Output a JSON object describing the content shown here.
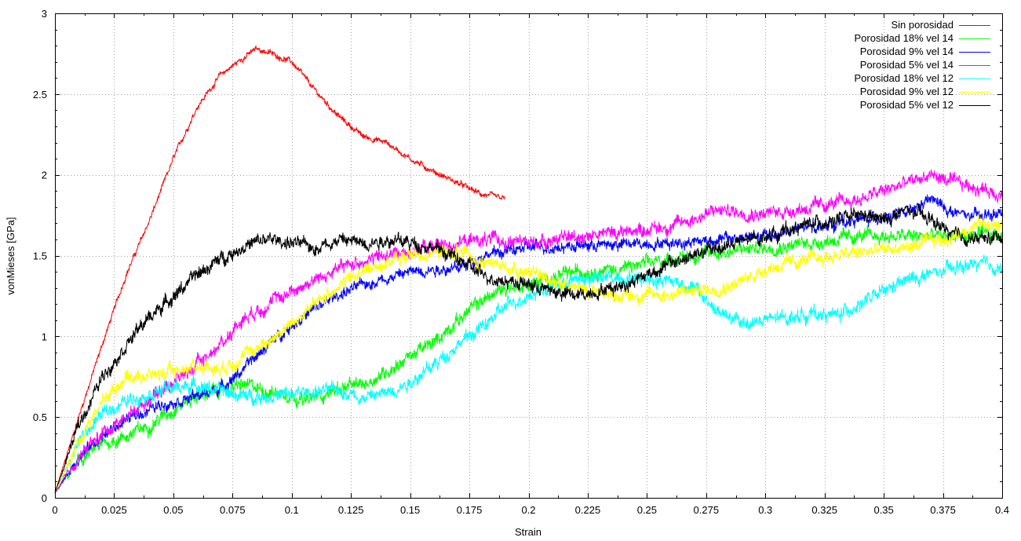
{
  "chart_data": {
    "type": "line",
    "title": "",
    "xlabel": "Strain",
    "ylabel": "vonMieses [GPa]",
    "xlim": [
      0,
      0.4
    ],
    "ylim": [
      0,
      3
    ],
    "x_ticks": [
      "0",
      "0.025",
      "0.05",
      "0.075",
      "0.1",
      "0.125",
      "0.15",
      "0.175",
      "0.2",
      "0.225",
      "0.25",
      "0.275",
      "0.3",
      "0.325",
      "0.35",
      "0.375",
      "0.4"
    ],
    "y_ticks": [
      "0",
      "0.5",
      "1",
      "1.5",
      "2",
      "2.5",
      "3"
    ],
    "grid": true,
    "legend_position": "top-right",
    "series": [
      {
        "name": "Sin porosidad",
        "color": "#ff0000",
        "x": [
          0,
          0.01,
          0.02,
          0.03,
          0.04,
          0.05,
          0.06,
          0.07,
          0.08,
          0.085,
          0.09,
          0.1,
          0.11,
          0.12,
          0.13,
          0.14,
          0.15,
          0.16,
          0.17,
          0.18,
          0.19
        ],
        "y": [
          0.03,
          0.5,
          0.95,
          1.38,
          1.72,
          2.1,
          2.42,
          2.62,
          2.73,
          2.78,
          2.76,
          2.7,
          2.52,
          2.36,
          2.24,
          2.2,
          2.1,
          2.02,
          1.95,
          1.88,
          1.85
        ],
        "noise": 0.015
      },
      {
        "name": "Porosidad 18% vel 14",
        "color": "#00ff00",
        "x": [
          0,
          0.01,
          0.02,
          0.03,
          0.04,
          0.05,
          0.06,
          0.07,
          0.08,
          0.09,
          0.1,
          0.105,
          0.11,
          0.12,
          0.13,
          0.14,
          0.15,
          0.16,
          0.17,
          0.18,
          0.19,
          0.2,
          0.21,
          0.22,
          0.24,
          0.26,
          0.28,
          0.3,
          0.32,
          0.34,
          0.36,
          0.38,
          0.4
        ],
        "y": [
          0.03,
          0.22,
          0.33,
          0.38,
          0.45,
          0.55,
          0.63,
          0.67,
          0.7,
          0.66,
          0.64,
          0.6,
          0.62,
          0.68,
          0.7,
          0.78,
          0.88,
          0.96,
          1.1,
          1.22,
          1.3,
          1.32,
          1.36,
          1.4,
          1.42,
          1.48,
          1.52,
          1.55,
          1.58,
          1.62,
          1.62,
          1.62,
          1.63
        ],
        "noise": 0.035
      },
      {
        "name": "Porosidad 9% vel 14",
        "color": "#0000ff",
        "x": [
          0,
          0.01,
          0.02,
          0.03,
          0.04,
          0.05,
          0.06,
          0.07,
          0.08,
          0.09,
          0.1,
          0.11,
          0.12,
          0.13,
          0.14,
          0.15,
          0.16,
          0.17,
          0.18,
          0.2,
          0.22,
          0.24,
          0.26,
          0.28,
          0.3,
          0.32,
          0.34,
          0.36,
          0.37,
          0.38,
          0.39,
          0.4
        ],
        "y": [
          0.03,
          0.25,
          0.38,
          0.48,
          0.55,
          0.6,
          0.63,
          0.68,
          0.8,
          0.95,
          1.07,
          1.17,
          1.26,
          1.32,
          1.36,
          1.4,
          1.42,
          1.42,
          1.5,
          1.55,
          1.56,
          1.57,
          1.58,
          1.6,
          1.62,
          1.68,
          1.72,
          1.76,
          1.85,
          1.76,
          1.74,
          1.76
        ],
        "noise": 0.03
      },
      {
        "name": "Porosidad 5% vel 14",
        "color": "#ff00ff",
        "x": [
          0,
          0.01,
          0.02,
          0.03,
          0.04,
          0.05,
          0.06,
          0.07,
          0.08,
          0.09,
          0.1,
          0.11,
          0.12,
          0.13,
          0.14,
          0.15,
          0.16,
          0.17,
          0.18,
          0.2,
          0.22,
          0.24,
          0.26,
          0.28,
          0.3,
          0.32,
          0.34,
          0.36,
          0.37,
          0.38,
          0.39,
          0.4
        ],
        "y": [
          0.03,
          0.25,
          0.4,
          0.5,
          0.62,
          0.72,
          0.82,
          0.95,
          1.12,
          1.2,
          1.28,
          1.35,
          1.42,
          1.47,
          1.5,
          1.53,
          1.56,
          1.58,
          1.6,
          1.58,
          1.62,
          1.65,
          1.68,
          1.78,
          1.76,
          1.8,
          1.85,
          1.95,
          2.0,
          1.95,
          1.92,
          1.88
        ],
        "noise": 0.035
      },
      {
        "name": "Porosidad 18% vel 12",
        "color": "#00ffff",
        "x": [
          0,
          0.01,
          0.02,
          0.03,
          0.04,
          0.05,
          0.06,
          0.07,
          0.08,
          0.09,
          0.1,
          0.11,
          0.12,
          0.13,
          0.14,
          0.15,
          0.16,
          0.17,
          0.18,
          0.19,
          0.2,
          0.22,
          0.24,
          0.26,
          0.27,
          0.28,
          0.29,
          0.3,
          0.32,
          0.33,
          0.34,
          0.36,
          0.38,
          0.39,
          0.4
        ],
        "y": [
          0.03,
          0.35,
          0.52,
          0.6,
          0.65,
          0.68,
          0.7,
          0.66,
          0.63,
          0.63,
          0.64,
          0.66,
          0.67,
          0.62,
          0.65,
          0.72,
          0.82,
          0.95,
          1.05,
          1.18,
          1.26,
          1.35,
          1.37,
          1.35,
          1.3,
          1.15,
          1.08,
          1.1,
          1.14,
          1.13,
          1.2,
          1.35,
          1.42,
          1.45,
          1.42
        ],
        "noise": 0.035
      },
      {
        "name": "Porosidad 9% vel 12",
        "color": "#ffff00",
        "x": [
          0,
          0.01,
          0.02,
          0.03,
          0.04,
          0.05,
          0.06,
          0.07,
          0.08,
          0.09,
          0.1,
          0.11,
          0.12,
          0.13,
          0.14,
          0.15,
          0.16,
          0.17,
          0.18,
          0.2,
          0.22,
          0.24,
          0.26,
          0.28,
          0.29,
          0.3,
          0.32,
          0.34,
          0.36,
          0.38,
          0.39,
          0.4
        ],
        "y": [
          0.03,
          0.35,
          0.6,
          0.75,
          0.76,
          0.78,
          0.82,
          0.8,
          0.88,
          0.97,
          1.08,
          1.2,
          1.32,
          1.4,
          1.46,
          1.5,
          1.52,
          1.52,
          1.46,
          1.4,
          1.3,
          1.25,
          1.26,
          1.3,
          1.34,
          1.42,
          1.48,
          1.52,
          1.55,
          1.62,
          1.7,
          1.68
        ],
        "noise": 0.035
      },
      {
        "name": "Porosidad 5% vel 12",
        "color": "#000000",
        "x": [
          0,
          0.01,
          0.02,
          0.03,
          0.04,
          0.05,
          0.06,
          0.07,
          0.08,
          0.09,
          0.1,
          0.11,
          0.12,
          0.13,
          0.14,
          0.15,
          0.16,
          0.17,
          0.18,
          0.19,
          0.2,
          0.21,
          0.22,
          0.24,
          0.26,
          0.28,
          0.3,
          0.32,
          0.33,
          0.34,
          0.35,
          0.36,
          0.37,
          0.38,
          0.39,
          0.4
        ],
        "y": [
          0.03,
          0.45,
          0.75,
          0.95,
          1.12,
          1.25,
          1.38,
          1.48,
          1.56,
          1.6,
          1.58,
          1.55,
          1.6,
          1.58,
          1.6,
          1.58,
          1.55,
          1.48,
          1.38,
          1.35,
          1.32,
          1.28,
          1.25,
          1.32,
          1.45,
          1.55,
          1.62,
          1.7,
          1.72,
          1.75,
          1.72,
          1.78,
          1.72,
          1.62,
          1.6,
          1.62
        ],
        "noise": 0.035
      }
    ]
  }
}
